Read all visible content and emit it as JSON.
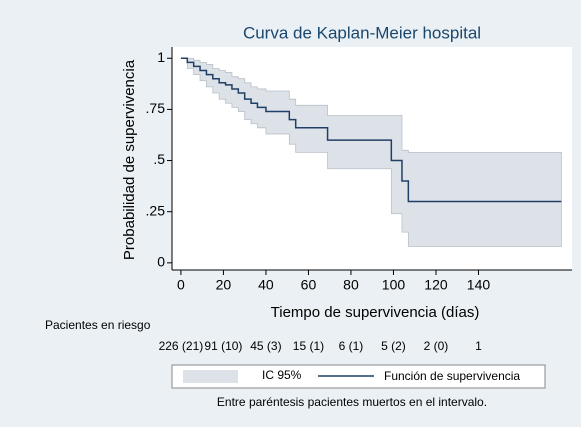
{
  "chart_data": {
    "type": "line",
    "title": "Curva de Kaplan-Meier hospital",
    "x_label": "Tiempo de supervivencia (días)",
    "y_label": "Probabilidad de supervivencia",
    "step": true,
    "x": [
      0,
      3,
      6,
      9,
      12,
      15,
      18,
      21,
      24,
      27,
      30,
      33,
      36,
      40,
      51,
      54,
      69,
      99,
      104,
      107,
      179
    ],
    "series": [
      {
        "name": "Función de supervivencia",
        "color": "#1f3f66",
        "values": [
          1,
          0.98,
          0.96,
          0.94,
          0.92,
          0.9,
          0.88,
          0.87,
          0.85,
          0.83,
          0.8,
          0.78,
          0.76,
          0.74,
          0.7,
          0.66,
          0.6,
          0.5,
          0.4,
          0.3,
          0.3
        ]
      }
    ],
    "ci": {
      "name": "IC 95%",
      "color": "#dde2e8",
      "lower": [
        1,
        0.95,
        0.92,
        0.89,
        0.86,
        0.83,
        0.8,
        0.78,
        0.76,
        0.74,
        0.7,
        0.68,
        0.66,
        0.63,
        0.58,
        0.54,
        0.46,
        0.24,
        0.15,
        0.08,
        0.08
      ],
      "upper": [
        1,
        1,
        0.99,
        0.98,
        0.97,
        0.95,
        0.94,
        0.93,
        0.91,
        0.9,
        0.88,
        0.86,
        0.85,
        0.84,
        0.8,
        0.77,
        0.72,
        0.72,
        0.55,
        0.54,
        0.54
      ]
    },
    "xlim": [
      -4.2,
      184
    ],
    "ylim": [
      -0.035,
      1.055
    ],
    "xticks": [
      0,
      20,
      40,
      60,
      80,
      100,
      120,
      140
    ],
    "yticks": [
      0,
      {
        "value": 0.25,
        "label": ".25"
      },
      {
        "value": 0.5,
        "label": ".5"
      },
      {
        "value": 0.75,
        "label": ".75"
      },
      1
    ],
    "risk_table": {
      "label": "Pacientes en riesgo",
      "values": [
        "226 (21)",
        "91 (10)",
        "45 (3)",
        "15 (1)",
        "6 (1)",
        "5 (2)",
        "2 (0)",
        "1"
      ]
    },
    "note": "Entre paréntesis pacientes muertos en el intervalo."
  }
}
